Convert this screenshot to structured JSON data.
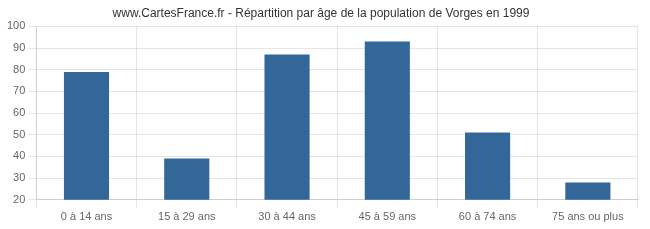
{
  "chart_data": {
    "type": "bar",
    "title": "www.CartesFrance.fr - Répartition par âge de la population de Vorges en 1999",
    "categories": [
      "0 à 14 ans",
      "15 à 29 ans",
      "30 à 44 ans",
      "45 à 59 ans",
      "60 à 74 ans",
      "75 ans ou plus"
    ],
    "values": [
      79,
      39,
      87,
      93,
      51,
      28
    ],
    "color": "#336699",
    "ylim": [
      20,
      100
    ],
    "yticks": [
      20,
      30,
      40,
      50,
      60,
      70,
      80,
      90,
      100
    ],
    "grid": true
  }
}
